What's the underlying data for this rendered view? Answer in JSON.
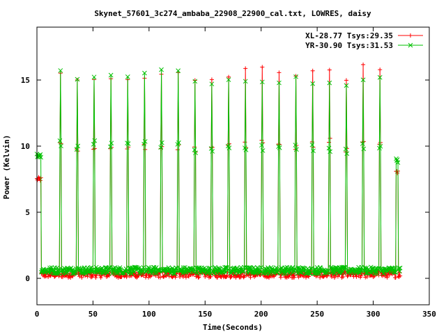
{
  "chart_data": {
    "type": "line",
    "title": "Skynet_57601_3c274_ambaba_22908_22900_cal.txt, LOWRES, daisy",
    "xlabel": "Time(Seconds)",
    "ylabel": "Power (Kelvin)",
    "xlim": [
      0,
      350
    ],
    "ylim": [
      -2,
      19
    ],
    "xticks": [
      0,
      50,
      100,
      150,
      200,
      250,
      300,
      350
    ],
    "yticks": [
      0,
      5,
      10,
      15
    ],
    "grid": false,
    "legend_position": "top-right",
    "noise_start": 4,
    "noise_end": 320,
    "series": [
      {
        "name": "XL-28.77 Tsys:29.35",
        "color": "#ff0000",
        "marker": "plus",
        "baseline": 0.3,
        "start_level": 7.5,
        "end_level": 8.1,
        "peaks": [
          {
            "x": 21,
            "y": 15.5
          },
          {
            "x": 36,
            "y": 15.0
          },
          {
            "x": 51,
            "y": 15.2
          },
          {
            "x": 66,
            "y": 15.2
          },
          {
            "x": 81,
            "y": 15.2
          },
          {
            "x": 96,
            "y": 15.2
          },
          {
            "x": 111,
            "y": 15.3
          },
          {
            "x": 126,
            "y": 15.4
          },
          {
            "x": 141,
            "y": 15.1
          },
          {
            "x": 156,
            "y": 15.3
          },
          {
            "x": 171,
            "y": 15.5
          },
          {
            "x": 186,
            "y": 15.6
          },
          {
            "x": 201,
            "y": 15.7
          },
          {
            "x": 216,
            "y": 15.8
          },
          {
            "x": 231,
            "y": 15.4
          },
          {
            "x": 246,
            "y": 15.6
          },
          {
            "x": 261,
            "y": 15.9
          },
          {
            "x": 276,
            "y": 14.9
          },
          {
            "x": 291,
            "y": 16.2
          },
          {
            "x": 306,
            "y": 16.0
          }
        ]
      },
      {
        "name": "YR-30.90 Tsys:31.53",
        "color": "#00c000",
        "marker": "cross",
        "baseline": 0.6,
        "start_level": 9.3,
        "end_level": 8.9,
        "peaks": [
          {
            "x": 21,
            "y": 15.6
          },
          {
            "x": 36,
            "y": 15.3
          },
          {
            "x": 51,
            "y": 15.5
          },
          {
            "x": 66,
            "y": 15.4
          },
          {
            "x": 81,
            "y": 15.5
          },
          {
            "x": 96,
            "y": 15.4
          },
          {
            "x": 111,
            "y": 15.5
          },
          {
            "x": 126,
            "y": 15.6
          },
          {
            "x": 141,
            "y": 14.9
          },
          {
            "x": 156,
            "y": 15.0
          },
          {
            "x": 171,
            "y": 15.0
          },
          {
            "x": 186,
            "y": 15.1
          },
          {
            "x": 201,
            "y": 15.1
          },
          {
            "x": 216,
            "y": 15.0
          },
          {
            "x": 231,
            "y": 15.1
          },
          {
            "x": 246,
            "y": 15.0
          },
          {
            "x": 261,
            "y": 15.0
          },
          {
            "x": 276,
            "y": 14.7
          },
          {
            "x": 291,
            "y": 15.2
          },
          {
            "x": 306,
            "y": 15.0
          }
        ]
      }
    ]
  }
}
